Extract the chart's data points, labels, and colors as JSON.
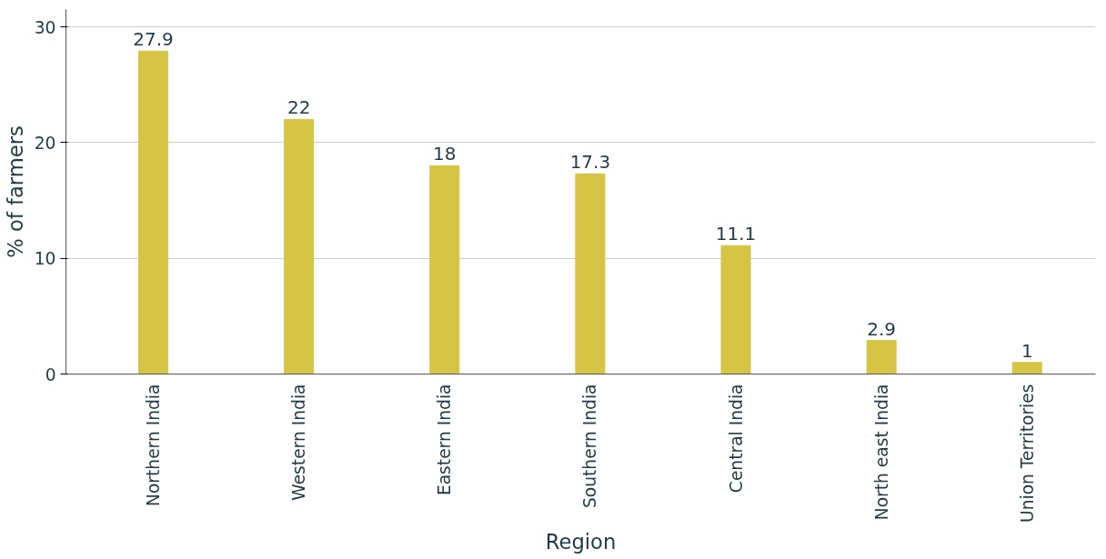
{
  "chart_data": {
    "type": "bar",
    "xlabel": "Region",
    "ylabel": "% of farmers",
    "categories": [
      "Northern India",
      "Western India",
      "Eastern India",
      "Southern India",
      "Central India",
      "North east India",
      "Union Territories"
    ],
    "values": [
      27.9,
      22,
      18,
      17.3,
      11.1,
      2.9,
      1
    ],
    "color": "#d6c445",
    "ylim": [
      0,
      31.5
    ],
    "yticks": [
      0,
      10,
      20,
      30
    ],
    "grid": "y",
    "data_labels": true
  }
}
